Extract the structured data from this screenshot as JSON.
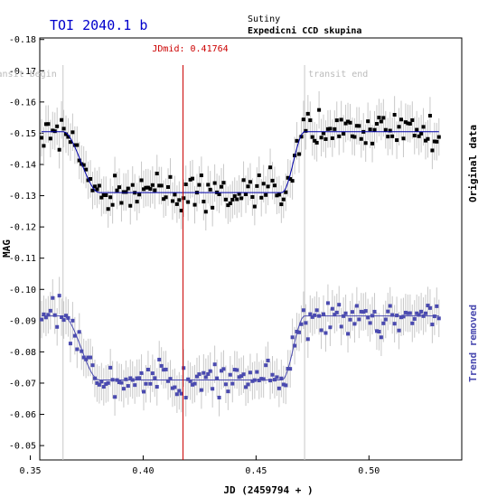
{
  "title": "TOI 2040.1 b",
  "observatory": "Sutiny",
  "observer": "Expedicni CCD skupina",
  "jdmid_label": "JDmid: 0.41764",
  "transit_begin_label": "transit begin",
  "transit_end_label": "transit end",
  "side_label_original": "Original data",
  "side_label_trend": "Trend removed",
  "colors": {
    "title": "#0000cc",
    "original": "#000000",
    "trend": "#4a4ab0",
    "model": "#0000aa",
    "jdmid": "#cc0000",
    "transit": "#c8c8c8",
    "errorbar": "#c8c8c8"
  },
  "chart_data": {
    "type": "scatter",
    "title": "TOI 2040.1 b",
    "xlabel": "JD (2459794 + )",
    "ylabel": "MAG",
    "xlim": [
      0.35,
      0.54
    ],
    "ylim": [
      -0.18,
      -0.045
    ],
    "y_inverted": true,
    "grid": false,
    "x_ticks": [
      "0.35",
      "0.40",
      "0.45",
      "0.50"
    ],
    "y_ticks": [
      "-0.18",
      "-0.17",
      "-0.16",
      "-0.15",
      "-0.14",
      "-0.13",
      "-0.12",
      "-0.11",
      "-0.10",
      "-0.09",
      "-0.08",
      "-0.07",
      "-0.06",
      "-0.05"
    ],
    "x_tick_values": [
      0.35,
      0.4,
      0.45,
      0.5
    ],
    "y_tick_values": [
      -0.18,
      -0.17,
      -0.16,
      -0.15,
      -0.14,
      -0.13,
      -0.12,
      -0.11,
      -0.1,
      -0.09,
      -0.08,
      -0.07,
      -0.06,
      -0.05
    ],
    "jdmid": 0.41764,
    "transit_begin": 0.3645,
    "transit_end": 0.4715,
    "x_start": 0.355,
    "x_end": 0.531,
    "n_points": 180,
    "series": [
      {
        "name": "Original data",
        "marker": "square",
        "baseline": -0.1505,
        "depth": 0.0195,
        "scatter": 0.004,
        "error": 0.006
      },
      {
        "name": "Trend removed",
        "marker": "square",
        "baseline": -0.0915,
        "depth": 0.0205,
        "scatter": 0.004,
        "error": 0.006
      }
    ]
  }
}
